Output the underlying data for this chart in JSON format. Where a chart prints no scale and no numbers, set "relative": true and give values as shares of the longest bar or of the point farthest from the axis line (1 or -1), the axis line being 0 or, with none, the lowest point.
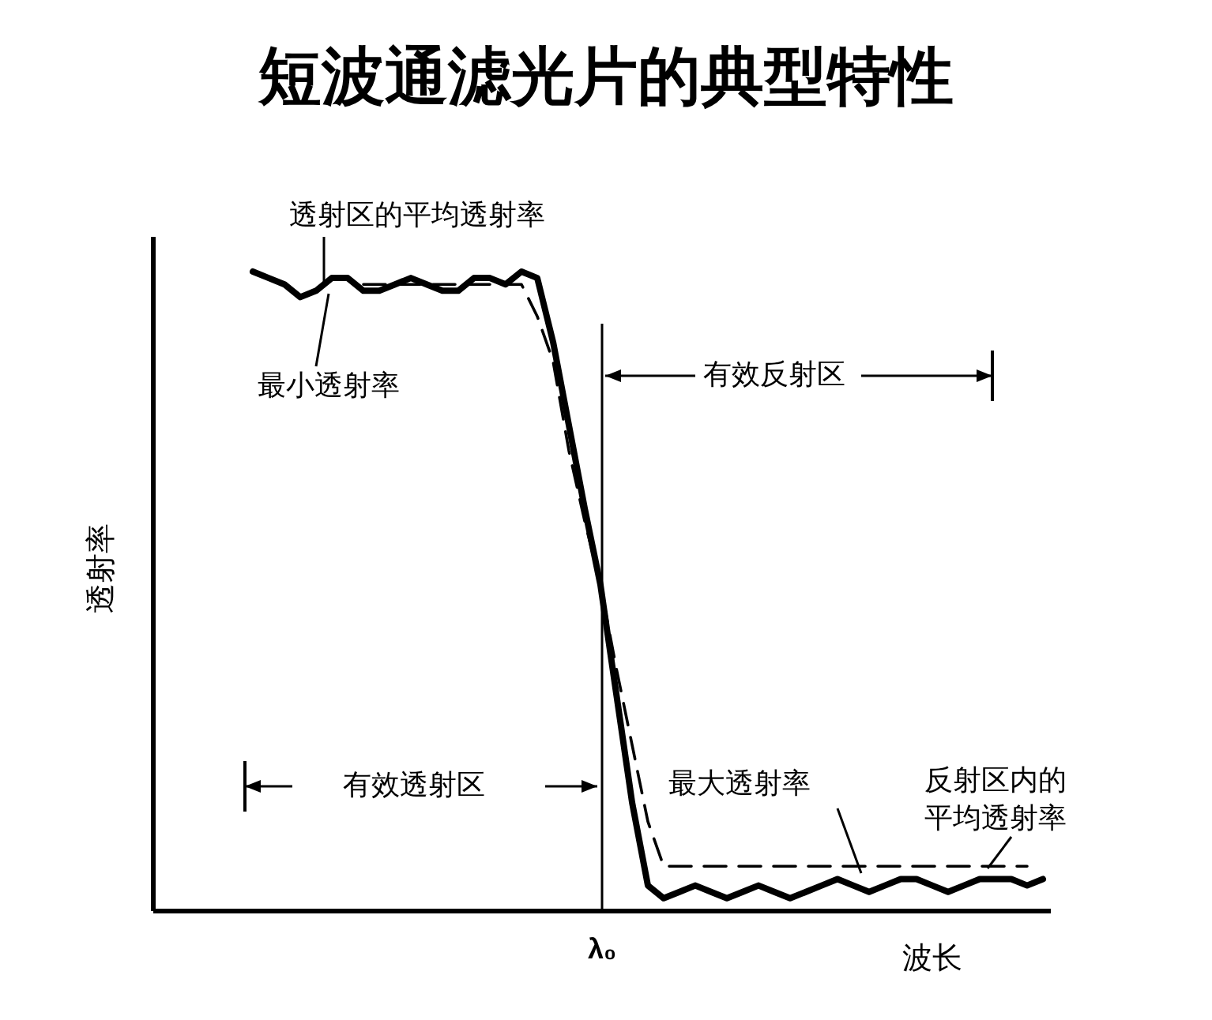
{
  "chart_data": {
    "type": "line",
    "title": "短波通滤光片的典型特性",
    "xlabel": "波长",
    "ylabel": "透射率",
    "relative": true,
    "categories": [
      null,
      null,
      null,
      null,
      null,
      null,
      null,
      null,
      null,
      null,
      null,
      null,
      null,
      null,
      null,
      null,
      null,
      null,
      null,
      null,
      null,
      null,
      null,
      null,
      null,
      null,
      null,
      null,
      null,
      null,
      null,
      null,
      null,
      null,
      null,
      null,
      null,
      null,
      null,
      null,
      null,
      null,
      null,
      null,
      null,
      null,
      null,
      null,
      null,
      null,
      null
    ],
    "series": [
      {
        "color": "#000000",
        "line_style": "solid",
        "values": [
          1.0,
          0.99,
          0.98,
          0.96,
          0.97,
          0.99,
          0.99,
          0.97,
          0.97,
          0.98,
          0.99,
          0.98,
          0.97,
          0.97,
          0.99,
          0.99,
          0.98,
          1.0,
          0.99,
          0.89,
          0.76,
          0.63,
          0.51,
          0.34,
          0.17,
          0.04,
          0.02,
          0.03,
          0.04,
          0.03,
          0.02,
          0.03,
          0.04,
          0.03,
          0.02,
          0.03,
          0.04,
          0.05,
          0.04,
          0.03,
          0.04,
          0.05,
          0.05,
          0.04,
          0.03,
          0.04,
          0.05,
          0.05,
          0.05,
          0.04,
          0.05
        ]
      },
      {
        "color": "#000000",
        "line_style": "dashed",
        "values": [
          null,
          null,
          null,
          null,
          null,
          null,
          null,
          0.98,
          0.98,
          0.98,
          0.98,
          0.98,
          0.98,
          0.98,
          0.98,
          0.98,
          0.98,
          0.98,
          0.93,
          0.86,
          0.72,
          0.61,
          0.51,
          0.38,
          0.26,
          0.14,
          0.07,
          0.07,
          0.07,
          0.07,
          0.07,
          0.07,
          0.07,
          0.07,
          0.07,
          0.07,
          0.07,
          0.07,
          0.07,
          0.07,
          0.07,
          0.07,
          0.07,
          0.07,
          0.07,
          0.07,
          0.07,
          0.07,
          0.07,
          0.07,
          null
        ]
      }
    ],
    "annotations": [
      "透射区的平均透射率",
      "最小透射率",
      "有效反射区",
      "有效透射区",
      "最大透射率",
      "反射区内的",
      "平均透射率",
      "λ₀"
    ]
  }
}
